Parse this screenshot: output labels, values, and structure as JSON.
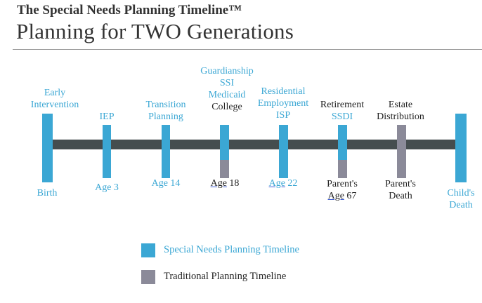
{
  "header": {
    "subtitle": "The Special Needs Planning Timeline™",
    "title": "Planning for TWO Generations"
  },
  "colors": {
    "special_needs": "#3ba7d4",
    "traditional": "#8b8a99",
    "bar": "#454d4f"
  },
  "markers": [
    {
      "above": [
        "Early",
        "Intervention"
      ],
      "below": [
        "Birth"
      ]
    },
    {
      "above": [
        "IEP"
      ],
      "below": [
        "Age 3"
      ]
    },
    {
      "above": [
        "Transition",
        "Planning"
      ],
      "below": [
        "Age 14"
      ]
    },
    {
      "above": [
        "Guardianship",
        "SSI",
        "Medicaid"
      ],
      "above_traditional": "College",
      "below_parts": [
        "Age",
        " 18"
      ]
    },
    {
      "above": [
        "Residential",
        "Employment",
        "ISP"
      ],
      "below_parts": [
        "Age",
        " 22"
      ]
    },
    {
      "above_traditional_top": "Retirement",
      "above": [
        "SSDI"
      ],
      "below_lines": [
        "Parent's"
      ],
      "below_parts": [
        "Age",
        " 67"
      ]
    },
    {
      "above_traditional_lines": [
        "Estate",
        "Distribution"
      ],
      "below_lines": [
        "Parent's",
        "Death"
      ]
    },
    {
      "below": [
        "Child's",
        "Death"
      ]
    }
  ],
  "legend": {
    "special_needs": "Special Needs Planning Timeline",
    "traditional": "Traditional Planning Timeline"
  }
}
